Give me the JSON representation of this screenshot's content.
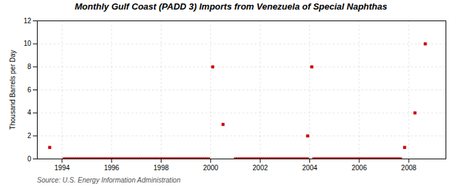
{
  "chart_data": {
    "type": "scatter",
    "title": "Monthly Gulf Coast (PADD 3) Imports from Venezuela of Special Naphthas",
    "ylabel": "Thousand Barrels per Day",
    "source": "Source: U.S. Energy Information Administration",
    "color": "#cc0000",
    "marker": "square",
    "grid": true,
    "xlim": [
      1993.0,
      2009.5
    ],
    "ylim": [
      0,
      12
    ],
    "xticks": [
      1994,
      1996,
      1998,
      2000,
      2002,
      2004,
      2006,
      2008
    ],
    "yticks": [
      0,
      2,
      4,
      6,
      8,
      10,
      12
    ],
    "x": [
      1993.5,
      1994.083,
      1994.167,
      1994.25,
      1994.333,
      1994.417,
      1994.5,
      1994.583,
      1994.667,
      1994.75,
      1994.833,
      1994.917,
      1995.0,
      1995.083,
      1995.167,
      1995.25,
      1995.333,
      1995.417,
      1995.5,
      1995.583,
      1995.667,
      1995.75,
      1995.833,
      1995.917,
      1996.0,
      1996.083,
      1996.167,
      1996.25,
      1996.333,
      1996.417,
      1996.5,
      1996.583,
      1996.667,
      1996.75,
      1996.833,
      1996.917,
      1997.0,
      1997.083,
      1997.167,
      1997.25,
      1997.333,
      1997.417,
      1997.5,
      1997.583,
      1997.667,
      1997.75,
      1997.833,
      1997.917,
      1998.0,
      1998.083,
      1998.167,
      1998.25,
      1998.333,
      1998.417,
      1998.5,
      1998.583,
      1998.667,
      1998.75,
      1998.833,
      1998.917,
      1999.0,
      1999.083,
      1999.167,
      1999.25,
      1999.333,
      1999.417,
      1999.5,
      1999.583,
      1999.667,
      1999.75,
      1999.833,
      1999.917,
      2000.083,
      2000.5,
      2001.0,
      2001.083,
      2001.167,
      2001.25,
      2001.333,
      2001.417,
      2001.5,
      2001.583,
      2001.667,
      2001.75,
      2001.833,
      2001.917,
      2002.0,
      2002.083,
      2002.167,
      2002.25,
      2002.333,
      2002.417,
      2002.5,
      2002.583,
      2002.667,
      2002.75,
      2002.833,
      2002.917,
      2003.0,
      2003.083,
      2003.167,
      2003.25,
      2003.333,
      2003.417,
      2003.5,
      2003.583,
      2003.667,
      2003.75,
      2003.833,
      2003.917,
      2003.917,
      2004.083,
      2004.167,
      2004.25,
      2004.333,
      2004.417,
      2004.5,
      2004.583,
      2004.667,
      2004.75,
      2004.833,
      2004.917,
      2005.0,
      2005.083,
      2005.167,
      2005.25,
      2005.333,
      2005.417,
      2005.5,
      2005.583,
      2005.667,
      2005.75,
      2005.833,
      2005.917,
      2006.0,
      2006.083,
      2006.167,
      2006.25,
      2006.333,
      2006.417,
      2006.5,
      2006.583,
      2006.667,
      2006.75,
      2006.833,
      2006.917,
      2007.0,
      2007.083,
      2007.167,
      2007.25,
      2007.333,
      2007.417,
      2007.5,
      2007.583,
      2007.667,
      2007.833,
      2008.25,
      2008.667
    ],
    "values": [
      1,
      0,
      0,
      0,
      0,
      0,
      0,
      0,
      0,
      0,
      0,
      0,
      0,
      0,
      0,
      0,
      0,
      0,
      0,
      0,
      0,
      0,
      0,
      0,
      0,
      0,
      0,
      0,
      0,
      0,
      0,
      0,
      0,
      0,
      0,
      0,
      0,
      0,
      0,
      0,
      0,
      0,
      0,
      0,
      0,
      0,
      0,
      0,
      0,
      0,
      0,
      0,
      0,
      0,
      0,
      0,
      0,
      0,
      0,
      0,
      0,
      0,
      0,
      0,
      0,
      0,
      0,
      0,
      0,
      0,
      0,
      0,
      8,
      3,
      0,
      0,
      0,
      0,
      0,
      0,
      0,
      0,
      0,
      0,
      0,
      0,
      0,
      0,
      0,
      0,
      0,
      0,
      0,
      0,
      0,
      0,
      0,
      0,
      0,
      0,
      0,
      0,
      0,
      0,
      0,
      0,
      0,
      0,
      0,
      0,
      2,
      8,
      0,
      0,
      0,
      0,
      0,
      0,
      0,
      0,
      0,
      0,
      0,
      0,
      0,
      0,
      0,
      0,
      0,
      0,
      0,
      0,
      0,
      0,
      0,
      0,
      0,
      0,
      0,
      0,
      0,
      0,
      0,
      0,
      0,
      0,
      0,
      0,
      0,
      0,
      0,
      0,
      0,
      0,
      0,
      1,
      4,
      10
    ]
  }
}
